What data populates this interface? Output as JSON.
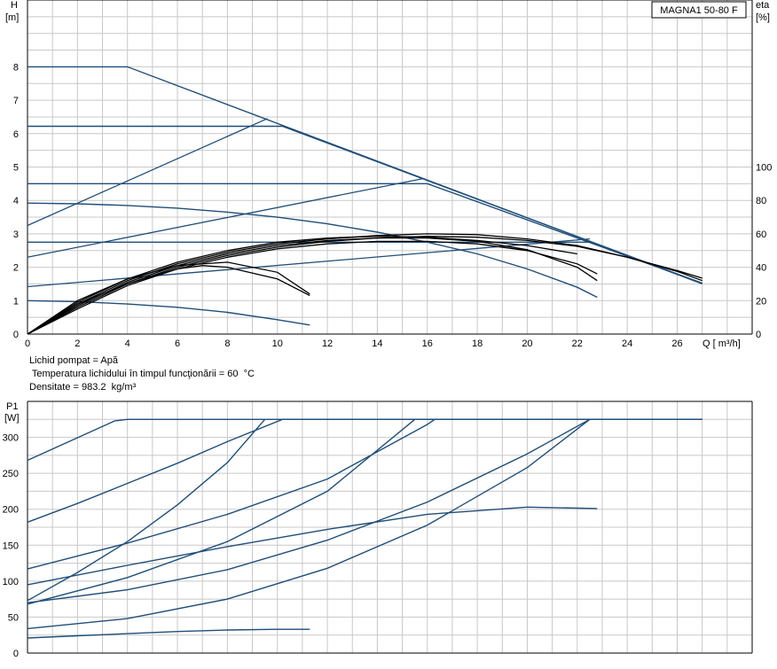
{
  "info_lines": [
    "Lichid pompat = Apă",
    " Temperatura lichidului în timpul funcţionării = 60  °C",
    "Densitate = 983.2  kg/m³"
  ],
  "colors": {
    "curve_blue": "#1f4e79",
    "eta_black": "#000000",
    "grid": "#c8c8c8",
    "axis": "#000000"
  },
  "chart_data": [
    {
      "type": "line",
      "model_label": "MAGNA1 50-80 F",
      "ylabel": "H",
      "yunit": "[m]",
      "xlabel": "Q [ m³/h]",
      "y2label": "eta",
      "y2unit": "[%]",
      "xlim": [
        0,
        29
      ],
      "ylim": [
        0,
        10
      ],
      "y2lim": [
        0,
        200
      ],
      "x_ticks": [
        0,
        2,
        4,
        6,
        8,
        10,
        12,
        14,
        16,
        18,
        20,
        22,
        24,
        26
      ],
      "y_ticks": [
        0,
        1,
        2,
        3,
        4,
        5,
        6,
        7,
        8
      ],
      "y2_ticks": [
        0,
        20,
        40,
        60,
        80,
        100
      ],
      "grid": true,
      "head_curves": [
        {
          "x": [
            0,
            4,
            27
          ],
          "y": [
            8,
            8,
            1.5
          ]
        },
        {
          "x": [
            0,
            10.2,
            27
          ],
          "y": [
            6.22,
            6.22,
            1.52
          ]
        },
        {
          "x": [
            0,
            16,
            27
          ],
          "y": [
            4.5,
            4.5,
            1.52
          ]
        },
        {
          "x": [
            0,
            22.5,
            27
          ],
          "y": [
            2.75,
            2.75,
            1.52
          ]
        },
        {
          "x": [
            0,
            2,
            4,
            6,
            8,
            10,
            12,
            14,
            16,
            18,
            20,
            22,
            22.8
          ],
          "y": [
            3.92,
            3.9,
            3.85,
            3.77,
            3.65,
            3.5,
            3.3,
            3.05,
            2.75,
            2.4,
            1.95,
            1.4,
            1.1
          ]
        },
        {
          "x": [
            0,
            2,
            4,
            6,
            8,
            10,
            11.3
          ],
          "y": [
            1.0,
            0.97,
            0.9,
            0.8,
            0.65,
            0.43,
            0.27
          ]
        }
      ],
      "system_lines": [
        {
          "x": [
            0,
            9.6
          ],
          "y": [
            3.25,
            6.45
          ]
        },
        {
          "x": [
            0,
            15.8
          ],
          "y": [
            2.3,
            4.65
          ]
        },
        {
          "x": [
            0,
            22.5
          ],
          "y": [
            1.42,
            2.85
          ]
        }
      ],
      "eta_curves": [
        {
          "x": [
            0,
            2,
            4,
            6,
            8,
            10,
            12,
            14,
            16,
            18,
            20,
            22,
            24,
            26,
            27
          ],
          "y": [
            0,
            18,
            32,
            42,
            49,
            54,
            57,
            59,
            60,
            59.5,
            57,
            53,
            46,
            38,
            33.5
          ]
        },
        {
          "x": [
            0,
            2,
            4,
            6,
            8,
            10,
            12,
            14,
            16,
            18,
            20,
            22,
            24,
            26,
            27
          ],
          "y": [
            0,
            16,
            30,
            40,
            47,
            52,
            55.5,
            57.5,
            58.5,
            58,
            56,
            52.5,
            46,
            37.5,
            32
          ]
        },
        {
          "x": [
            0,
            2,
            4,
            6,
            8,
            10,
            12,
            14,
            16,
            18,
            20,
            22,
            22.8
          ],
          "y": [
            0,
            17,
            31,
            41,
            48,
            53,
            56,
            57.5,
            57.5,
            55.5,
            50.5,
            40,
            32
          ]
        },
        {
          "x": [
            0,
            2,
            4,
            6,
            8,
            10,
            12,
            14,
            16,
            18,
            20,
            22,
            22.8
          ],
          "y": [
            0,
            15,
            29,
            39,
            46,
            51,
            54,
            55.5,
            55.5,
            54,
            50,
            42,
            36
          ]
        },
        {
          "x": [
            0,
            2,
            4,
            6,
            8,
            10,
            12,
            14,
            16,
            18,
            20,
            22
          ],
          "y": [
            0,
            19,
            33,
            43,
            50,
            55,
            57.5,
            58.5,
            58,
            56,
            53,
            48
          ]
        },
        {
          "x": [
            0,
            2,
            4,
            6,
            8,
            10,
            11.3
          ],
          "y": [
            0,
            20,
            33,
            41,
            43,
            37,
            24
          ]
        },
        {
          "x": [
            0,
            2,
            4,
            6,
            7,
            8,
            10,
            11.3
          ],
          "y": [
            0,
            18,
            30,
            39,
            41,
            40,
            33,
            23
          ]
        }
      ]
    },
    {
      "type": "line",
      "ylabel": "P1",
      "yunit": "[W]",
      "xlim": [
        0,
        29
      ],
      "ylim": [
        0,
        350
      ],
      "y_ticks": [
        0,
        50,
        100,
        150,
        200,
        250,
        300
      ],
      "grid": true,
      "power_curves": [
        {
          "x": [
            0,
            3.5,
            4,
            27
          ],
          "y": [
            268,
            323,
            325,
            325
          ]
        },
        {
          "x": [
            0,
            2,
            4,
            6,
            8,
            10.2,
            27
          ],
          "y": [
            182,
            208,
            236,
            264,
            294,
            325,
            325
          ]
        },
        {
          "x": [
            0,
            2,
            4,
            6,
            8,
            9.5
          ],
          "y": [
            73,
            112,
            155,
            206,
            265,
            325
          ]
        },
        {
          "x": [
            0,
            4,
            8,
            12,
            16,
            16.3,
            27
          ],
          "y": [
            117,
            153,
            193,
            242,
            318,
            325,
            325
          ]
        },
        {
          "x": [
            0,
            4,
            8,
            12,
            15.5
          ],
          "y": [
            68,
            105,
            155,
            225,
            325
          ]
        },
        {
          "x": [
            0,
            4,
            8,
            12,
            16,
            20,
            22.5,
            27
          ],
          "y": [
            70,
            88,
            116,
            157,
            210,
            277,
            325,
            325
          ]
        },
        {
          "x": [
            0,
            4,
            8,
            12,
            16,
            20,
            22.5
          ],
          "y": [
            34,
            48,
            75,
            118,
            178,
            258,
            325
          ]
        },
        {
          "x": [
            0,
            4,
            8,
            12,
            16,
            20,
            22.8
          ],
          "y": [
            95,
            122,
            148,
            172,
            193,
            203,
            201
          ]
        },
        {
          "x": [
            0,
            2,
            4,
            6,
            8,
            10,
            11.3
          ],
          "y": [
            21,
            24,
            27,
            30,
            32,
            33,
            33
          ]
        }
      ]
    }
  ]
}
